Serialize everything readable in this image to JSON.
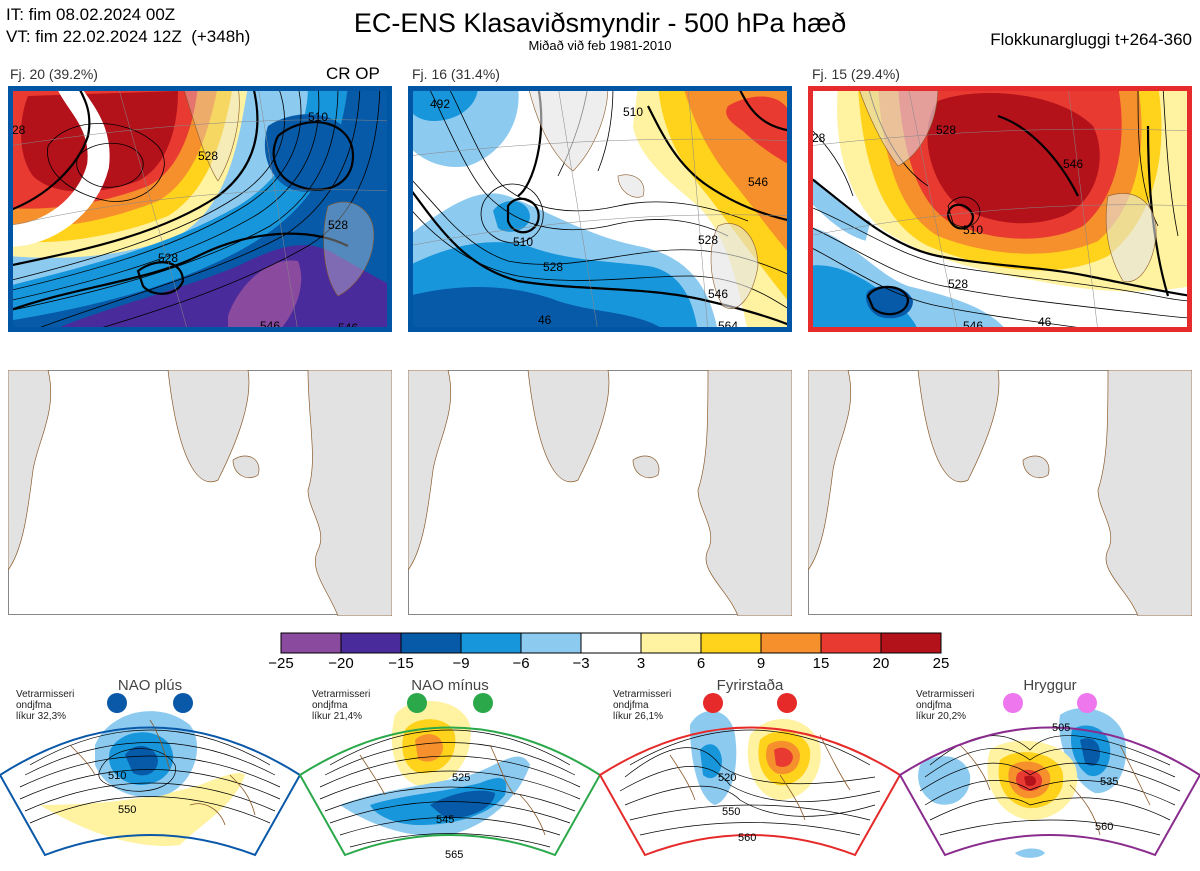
{
  "header": {
    "it_line": "IT: fim 08.02.2024 00Z",
    "vt_line": "VT: fim 22.02.2024 12Z  (+348h)",
    "title": "EC-ENS Klasaviðsmyndir - 500 hPa hæð",
    "subtitle": "Miðað við feb 1981-2010",
    "window": "Flokkunargluggi t+264-360"
  },
  "clusters": [
    {
      "label": "Fj. 20 (39.2%)",
      "tag": "CR OP",
      "border": "#0055a5",
      "contour_labels": [
        "528",
        "528",
        "510",
        "528",
        "546",
        "546",
        "28"
      ]
    },
    {
      "label": "Fj. 16 (31.4%)",
      "tag": "",
      "border": "#0055a5",
      "contour_labels": [
        "492",
        "510",
        "528",
        "528",
        "546",
        "546",
        "564",
        "46",
        "510"
      ]
    },
    {
      "label": "Fj. 15 (29.4%)",
      "tag": "",
      "border": "#e52b2b",
      "contour_labels": [
        "528",
        "546",
        "510",
        "528",
        "546",
        "46",
        "28"
      ]
    }
  ],
  "colorbar": {
    "ticks": [
      "−25",
      "−20",
      "−15",
      "−9",
      "−6",
      "−3",
      "3",
      "6",
      "9",
      "15",
      "20",
      "25"
    ],
    "colors": [
      "#8a4a9e",
      "#4a2b9b",
      "#075aa8",
      "#1896db",
      "#8ccaf0",
      "#ffffff",
      "#fff2a0",
      "#ffd21c",
      "#f5902c",
      "#e83a30",
      "#b3121b"
    ]
  },
  "regimes": [
    {
      "title": "NAO plús",
      "note": [
        "Vetrarmisseri",
        "ondjfma",
        "líkur 32,3%"
      ],
      "dot_color": "#0a58a8",
      "border": "#0a58a8",
      "contour_labels": [
        "510",
        "550"
      ]
    },
    {
      "title": "NAO mínus",
      "note": [
        "Vetrarmisseri",
        "ondjfma",
        "líkur 21,4%"
      ],
      "dot_color": "#2aa84a",
      "border": "#2aa84a",
      "contour_labels": [
        "525",
        "545",
        "565"
      ]
    },
    {
      "title": "Fyrirstaða",
      "note": [
        "Vetrarmisseri",
        "ondjfma",
        "líkur 26,1%"
      ],
      "dot_color": "#e62a2a",
      "border": "#e62a2a",
      "contour_labels": [
        "520",
        "550",
        "560"
      ]
    },
    {
      "title": "Hryggur",
      "note": [
        "Vetrarmisseri",
        "ondjfma",
        "líkur 20,2%"
      ],
      "dot_color": "#ee77ee",
      "border": "#8a2c8e",
      "contour_labels": [
        "505",
        "535",
        "560"
      ]
    }
  ]
}
